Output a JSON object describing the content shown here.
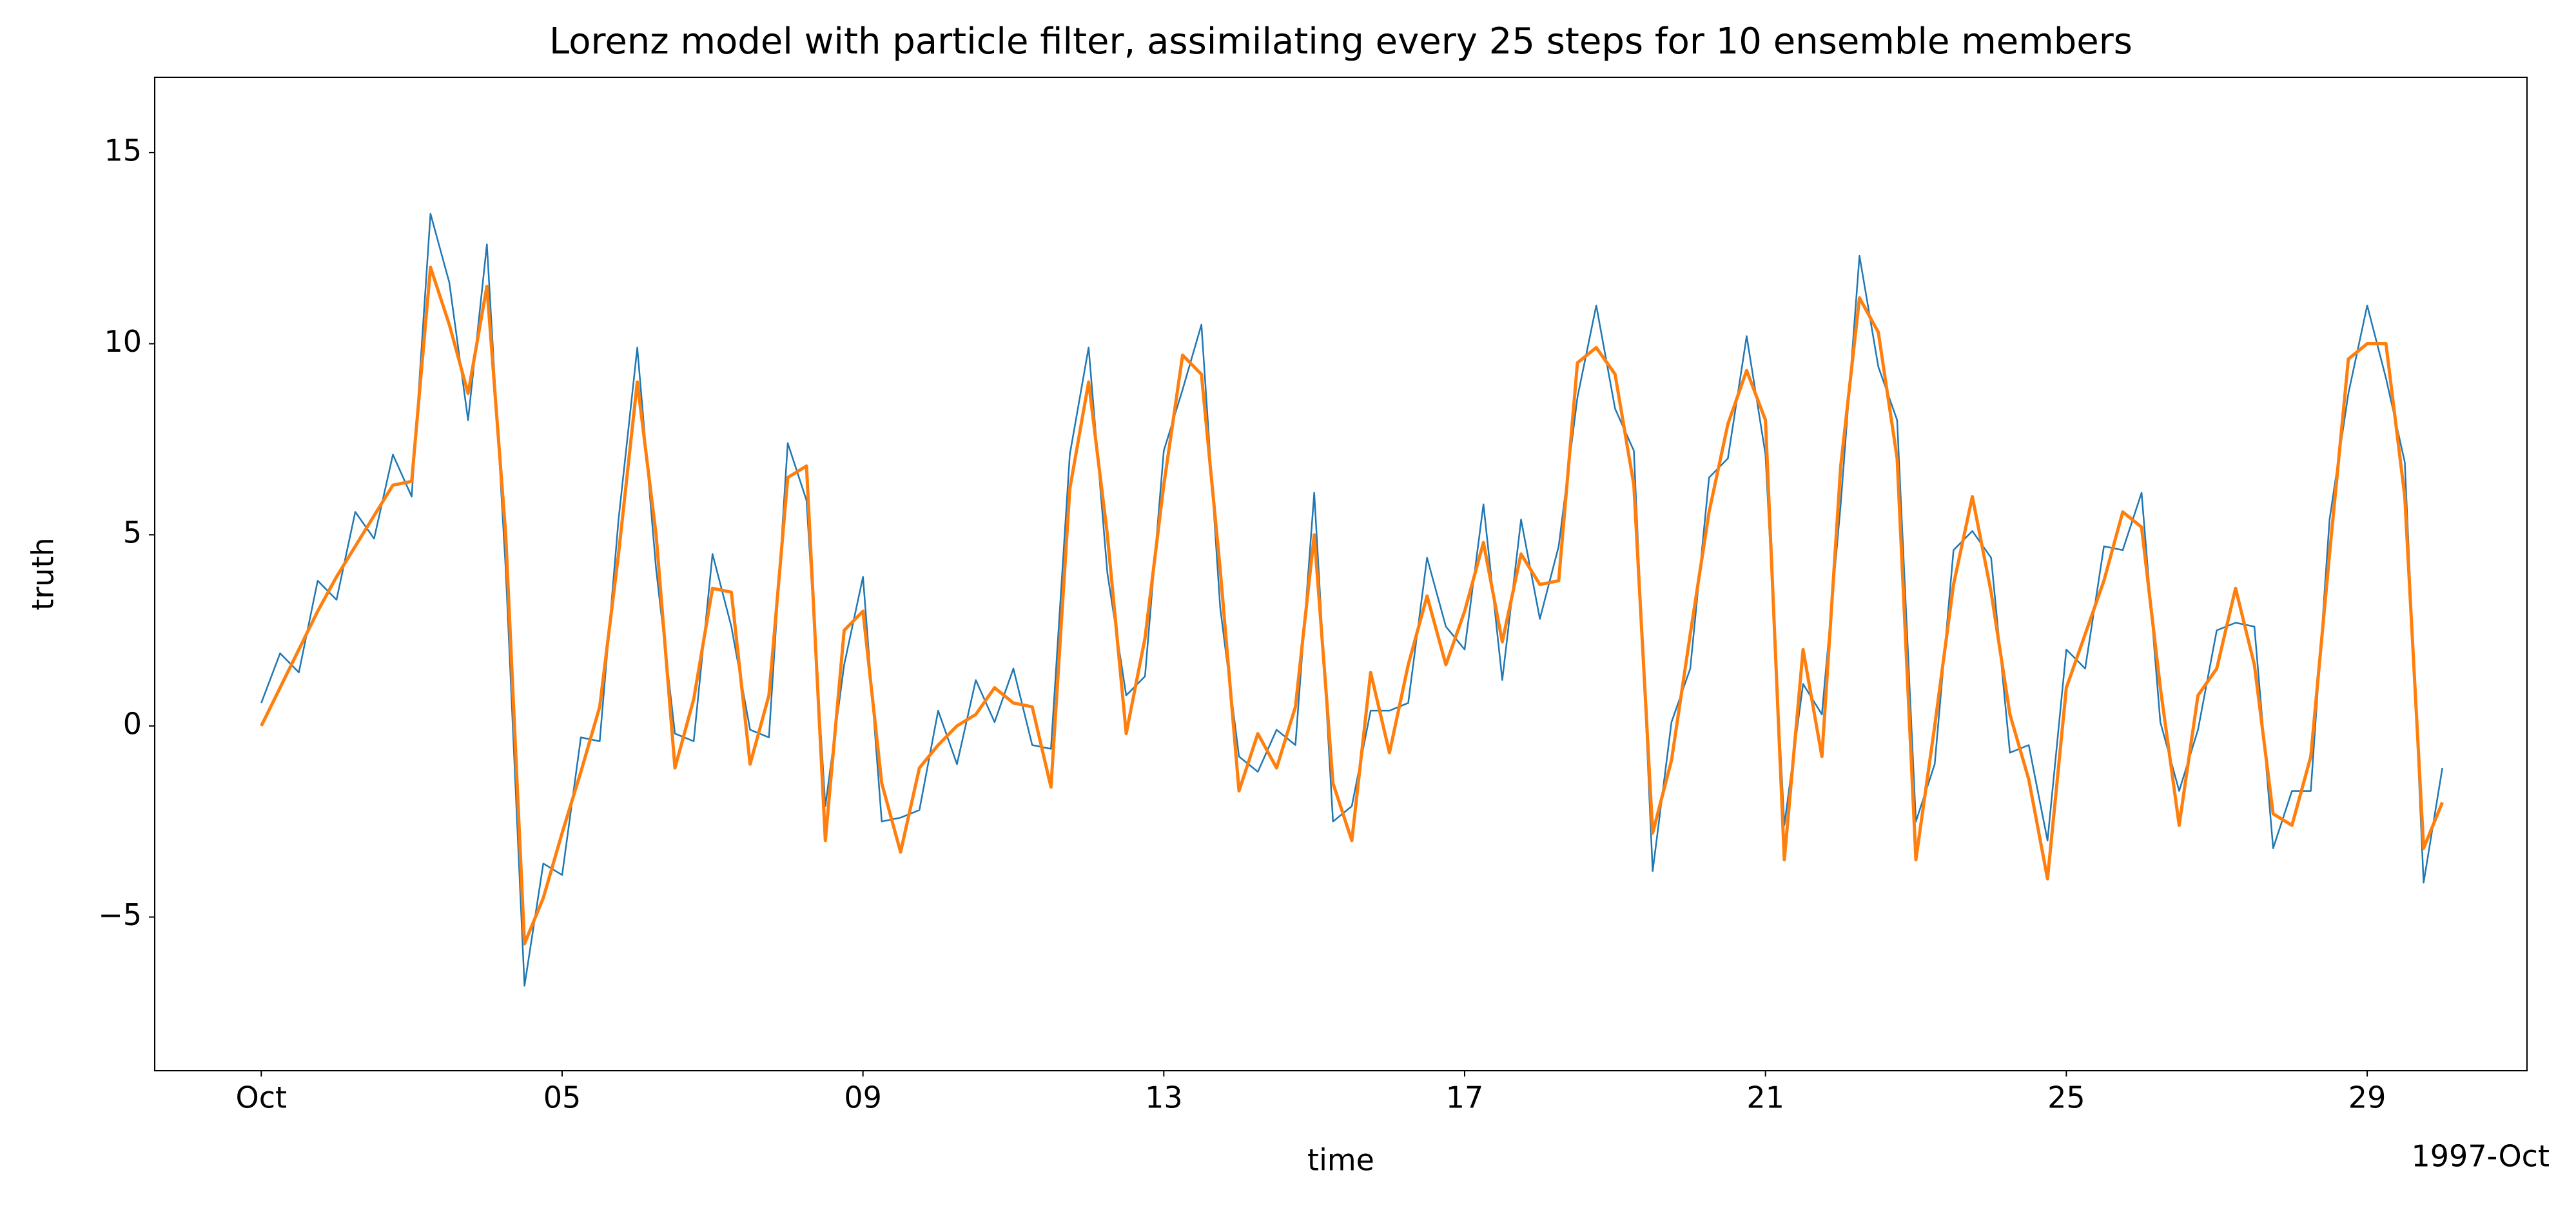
{
  "chart_data": {
    "type": "line",
    "title": "Lorenz model with particle filter, assimilating every 25 steps for 10 ensemble members",
    "xlabel": "time",
    "ylabel": "truth",
    "x_offset_label": "1997-Oct",
    "x": [
      "1997-10-01T00:00",
      "1997-10-01T06:00",
      "1997-10-01T12:00",
      "1997-10-01T18:00",
      "1997-10-02T00:00",
      "1997-10-02T06:00",
      "1997-10-02T12:00",
      "1997-10-02T18:00",
      "1997-10-03T00:00",
      "1997-10-03T06:00",
      "1997-10-03T12:00",
      "1997-10-03T18:00",
      "1997-10-04T00:00",
      "1997-10-04T06:00",
      "1997-10-04T12:00",
      "1997-10-04T18:00",
      "1997-10-05T00:00",
      "1997-10-05T06:00",
      "1997-10-05T12:00",
      "1997-10-05T18:00",
      "1997-10-06T00:00",
      "1997-10-06T06:00",
      "1997-10-06T12:00",
      "1997-10-06T18:00",
      "1997-10-07T00:00",
      "1997-10-07T06:00",
      "1997-10-07T12:00",
      "1997-10-07T18:00",
      "1997-10-08T00:00",
      "1997-10-08T06:00",
      "1997-10-08T12:00",
      "1997-10-08T18:00",
      "1997-10-09T00:00",
      "1997-10-09T06:00",
      "1997-10-09T12:00",
      "1997-10-09T18:00",
      "1997-10-10T00:00",
      "1997-10-10T06:00",
      "1997-10-10T12:00",
      "1997-10-10T18:00",
      "1997-10-11T00:00",
      "1997-10-11T06:00",
      "1997-10-11T12:00",
      "1997-10-11T18:00",
      "1997-10-12T00:00",
      "1997-10-12T06:00",
      "1997-10-12T12:00",
      "1997-10-12T18:00",
      "1997-10-13T00:00",
      "1997-10-13T06:00",
      "1997-10-13T12:00",
      "1997-10-13T18:00",
      "1997-10-14T00:00",
      "1997-10-14T06:00",
      "1997-10-14T12:00",
      "1997-10-14T18:00",
      "1997-10-15T00:00",
      "1997-10-15T06:00",
      "1997-10-15T12:00",
      "1997-10-15T18:00",
      "1997-10-16T00:00",
      "1997-10-16T06:00",
      "1997-10-16T12:00",
      "1997-10-16T18:00",
      "1997-10-17T00:00",
      "1997-10-17T06:00",
      "1997-10-17T12:00",
      "1997-10-17T18:00",
      "1997-10-18T00:00",
      "1997-10-18T06:00",
      "1997-10-18T12:00",
      "1997-10-18T18:00",
      "1997-10-19T00:00",
      "1997-10-19T06:00",
      "1997-10-19T12:00",
      "1997-10-19T18:00",
      "1997-10-20T00:00",
      "1997-10-20T06:00",
      "1997-10-20T12:00",
      "1997-10-20T18:00",
      "1997-10-21T00:00",
      "1997-10-21T06:00",
      "1997-10-21T12:00",
      "1997-10-21T18:00",
      "1997-10-22T00:00",
      "1997-10-22T06:00",
      "1997-10-22T12:00",
      "1997-10-22T18:00",
      "1997-10-23T00:00",
      "1997-10-23T06:00",
      "1997-10-23T12:00",
      "1997-10-23T18:00",
      "1997-10-24T00:00",
      "1997-10-24T06:00",
      "1997-10-24T12:00",
      "1997-10-24T18:00",
      "1997-10-25T00:00",
      "1997-10-25T06:00",
      "1997-10-25T12:00",
      "1997-10-25T18:00",
      "1997-10-26T00:00",
      "1997-10-26T06:00",
      "1997-10-26T12:00",
      "1997-10-26T18:00",
      "1997-10-27T00:00",
      "1997-10-27T06:00",
      "1997-10-27T12:00",
      "1997-10-27T18:00",
      "1997-10-28T00:00",
      "1997-10-28T06:00",
      "1997-10-28T12:00",
      "1997-10-28T18:00",
      "1997-10-29T00:00",
      "1997-10-29T06:00",
      "1997-10-29T12:00",
      "1997-10-29T18:00",
      "1997-10-30T00:00"
    ],
    "series": [
      {
        "color": "#1f77b4",
        "width": 2.5,
        "values": [
          0.6,
          1.9,
          1.4,
          3.8,
          3.3,
          5.6,
          4.9,
          7.1,
          6.0,
          13.4,
          11.6,
          8.0,
          12.6,
          4.1,
          -6.8,
          -3.6,
          -3.9,
          -0.3,
          -0.4,
          5.4,
          9.9,
          4.1,
          -0.2,
          -0.4,
          4.5,
          2.6,
          -0.1,
          -0.3,
          7.4,
          5.9,
          -2.1,
          1.6,
          3.9,
          -2.5,
          -2.4,
          -2.2,
          0.4,
          -1.0,
          1.2,
          0.1,
          1.5,
          -0.5,
          -0.6,
          7.1,
          9.9,
          4.0,
          0.8,
          1.3,
          7.2,
          8.8,
          10.5,
          3.1,
          -0.8,
          -1.2,
          -0.1,
          -0.5,
          6.1,
          -2.5,
          -2.1,
          0.4,
          0.4,
          0.6,
          4.4,
          2.6,
          2.0,
          5.8,
          1.2,
          5.4,
          2.8,
          4.7,
          8.6,
          11.0,
          8.3,
          7.2,
          -3.8,
          0.1,
          1.5,
          6.5,
          7.0,
          10.2,
          7.1,
          -2.6,
          1.1,
          0.3,
          5.8,
          12.3,
          9.4,
          8.0,
          -2.5,
          -1.0,
          4.6,
          5.1,
          4.4,
          -0.7,
          -0.5,
          -3.0,
          2.0,
          1.5,
          4.7,
          4.6,
          6.1,
          0.1,
          -1.7,
          -0.1,
          2.5,
          2.7,
          2.6,
          -3.2,
          -1.7,
          -1.7,
          5.4,
          8.7,
          11.0,
          9.1,
          6.9,
          -4.1,
          -1.1
        ]
      },
      {
        "color": "#ff7f0e",
        "width": 5,
        "values": [
          0,
          1.0,
          2.0,
          3.0,
          3.9,
          4.7,
          5.5,
          6.3,
          6.4,
          12,
          10.5,
          8.7,
          11.5,
          5,
          -5.7,
          -4.5,
          -2.8,
          -1.2,
          0.5,
          4.5,
          9,
          5,
          -1.1,
          0.7,
          3.6,
          3.5,
          -1,
          0.8,
          6.5,
          6.8,
          -3,
          2.5,
          3,
          -1.5,
          -3.3,
          -1.1,
          -0.5,
          0,
          0.3,
          1,
          0.6,
          0.5,
          -1.6,
          6.2,
          9,
          5,
          -0.2,
          2.3,
          6.3,
          9.7,
          9.2,
          4.1,
          -1.7,
          -0.2,
          -1.1,
          0.5,
          5,
          -1.5,
          -3,
          1.4,
          -0.7,
          1.6,
          3.4,
          1.6,
          3,
          4.8,
          2.2,
          4.5,
          3.7,
          3.8,
          9.5,
          9.9,
          9.2,
          6.3,
          -2.8,
          -0.9,
          2.4,
          5.6,
          7.9,
          9.3,
          8,
          -3.5,
          2,
          -0.8,
          6.8,
          11.2,
          10.3,
          7,
          -3.5,
          0,
          3.7,
          6,
          3.5,
          0.3,
          -1.4,
          -4,
          1,
          2.4,
          3.8,
          5.6,
          5.2,
          1,
          -2.6,
          0.8,
          1.5,
          3.6,
          1.6,
          -2.3,
          -2.6,
          -0.8,
          4.5,
          9.6,
          10,
          10,
          6,
          -3.2,
          -2
        ]
      }
    ],
    "xlim": [
      "1997-09-29T14:00",
      "1997-10-31T03:00"
    ],
    "xticks": [
      {
        "value": "1997-10-01T00:00",
        "label": "Oct"
      },
      {
        "value": "1997-10-05T00:00",
        "label": "05"
      },
      {
        "value": "1997-10-09T00:00",
        "label": "09"
      },
      {
        "value": "1997-10-13T00:00",
        "label": "13"
      },
      {
        "value": "1997-10-17T00:00",
        "label": "17"
      },
      {
        "value": "1997-10-21T00:00",
        "label": "21"
      },
      {
        "value": "1997-10-25T00:00",
        "label": "25"
      },
      {
        "value": "1997-10-29T00:00",
        "label": "29"
      }
    ],
    "ylim": [
      -9.02,
      16.97
    ],
    "yticks": [
      {
        "value": -5,
        "label": "−5"
      },
      0,
      5,
      10,
      15
    ],
    "grid": false
  }
}
